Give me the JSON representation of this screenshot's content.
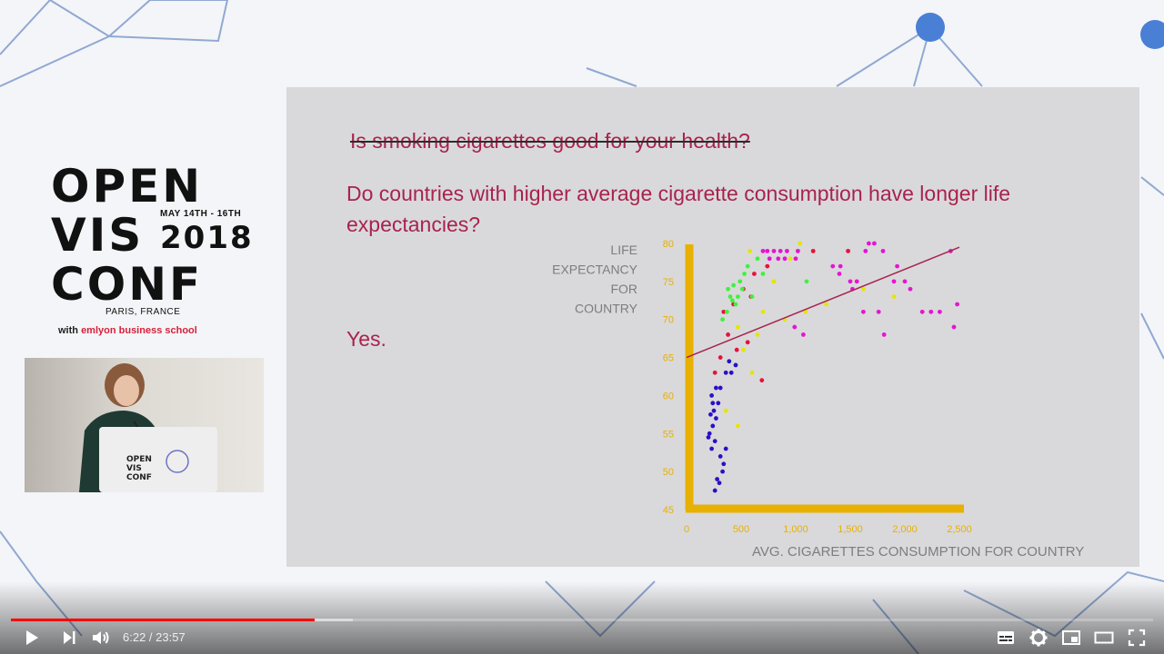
{
  "conference": {
    "name_line1": "OPEN",
    "name_line2": "VIS",
    "name_line3": "CONF",
    "dates": "MAY 14TH - 16TH",
    "year": "2018",
    "city": "PARIS, FRANCE",
    "partner_prefix": "with",
    "partner_name": "emlyon business school"
  },
  "slide": {
    "question_struck": "Is smoking cigarettes good for your health?",
    "question": "Do countries with higher average cigarette consumption have longer life expectancies?",
    "answer": "Yes."
  },
  "chart_data": {
    "type": "scatter",
    "ylabel": [
      "LIFE",
      "EXPECTANCY",
      "FOR",
      "COUNTRY"
    ],
    "xlabel": "AVG. CIGARETTES CONSUMPTION FOR COUNTRY",
    "x_ticks": [
      "0",
      "500",
      "1,000",
      "1,500",
      "2,000",
      "2,500"
    ],
    "y_ticks": [
      "45",
      "50",
      "55",
      "60",
      "65",
      "70",
      "75",
      "80"
    ],
    "xlim": [
      0,
      2500
    ],
    "ylim": [
      45,
      80
    ],
    "trend_line": {
      "x": [
        0,
        2500
      ],
      "y": [
        65,
        79.5
      ]
    },
    "colors": {
      "purple": "#2b0fc8",
      "red": "#e8113a",
      "yellow": "#e5e600",
      "green": "#3ff23f",
      "magenta": "#e614d2",
      "axis": "#e8b000",
      "trend": "#a8234d"
    },
    "points": [
      {
        "x": 210,
        "y": 55,
        "c": "purple"
      },
      {
        "x": 230,
        "y": 53,
        "c": "purple"
      },
      {
        "x": 260,
        "y": 54,
        "c": "purple"
      },
      {
        "x": 200,
        "y": 54.5,
        "c": "purple"
      },
      {
        "x": 240,
        "y": 56,
        "c": "purple"
      },
      {
        "x": 270,
        "y": 57,
        "c": "purple"
      },
      {
        "x": 250,
        "y": 58,
        "c": "purple"
      },
      {
        "x": 290,
        "y": 59,
        "c": "purple"
      },
      {
        "x": 230,
        "y": 60,
        "c": "purple"
      },
      {
        "x": 270,
        "y": 61,
        "c": "purple"
      },
      {
        "x": 310,
        "y": 52,
        "c": "purple"
      },
      {
        "x": 340,
        "y": 51,
        "c": "purple"
      },
      {
        "x": 280,
        "y": 49,
        "c": "purple"
      },
      {
        "x": 300,
        "y": 48.5,
        "c": "purple"
      },
      {
        "x": 260,
        "y": 47.5,
        "c": "purple"
      },
      {
        "x": 330,
        "y": 50,
        "c": "purple"
      },
      {
        "x": 360,
        "y": 53,
        "c": "purple"
      },
      {
        "x": 310,
        "y": 61,
        "c": "purple"
      },
      {
        "x": 360,
        "y": 63,
        "c": "purple"
      },
      {
        "x": 410,
        "y": 63,
        "c": "purple"
      },
      {
        "x": 450,
        "y": 64,
        "c": "purple"
      },
      {
        "x": 390,
        "y": 64.5,
        "c": "purple"
      },
      {
        "x": 220,
        "y": 57.5,
        "c": "purple"
      },
      {
        "x": 240,
        "y": 59,
        "c": "purple"
      },
      {
        "x": 260,
        "y": 63,
        "c": "red"
      },
      {
        "x": 310,
        "y": 65,
        "c": "red"
      },
      {
        "x": 340,
        "y": 71,
        "c": "red"
      },
      {
        "x": 430,
        "y": 72,
        "c": "red"
      },
      {
        "x": 520,
        "y": 74,
        "c": "red"
      },
      {
        "x": 590,
        "y": 73,
        "c": "red"
      },
      {
        "x": 740,
        "y": 77,
        "c": "red"
      },
      {
        "x": 1160,
        "y": 79,
        "c": "red"
      },
      {
        "x": 1480,
        "y": 79,
        "c": "red"
      },
      {
        "x": 380,
        "y": 68,
        "c": "red"
      },
      {
        "x": 620,
        "y": 76,
        "c": "red"
      },
      {
        "x": 690,
        "y": 62,
        "c": "red"
      },
      {
        "x": 460,
        "y": 66,
        "c": "red"
      },
      {
        "x": 560,
        "y": 67,
        "c": "red"
      },
      {
        "x": 470,
        "y": 69,
        "c": "yellow"
      },
      {
        "x": 520,
        "y": 66,
        "c": "yellow"
      },
      {
        "x": 600,
        "y": 63,
        "c": "yellow"
      },
      {
        "x": 700,
        "y": 71,
        "c": "yellow"
      },
      {
        "x": 800,
        "y": 75,
        "c": "yellow"
      },
      {
        "x": 950,
        "y": 78,
        "c": "yellow"
      },
      {
        "x": 1090,
        "y": 71,
        "c": "yellow"
      },
      {
        "x": 1280,
        "y": 72,
        "c": "yellow"
      },
      {
        "x": 1620,
        "y": 74,
        "c": "yellow"
      },
      {
        "x": 1900,
        "y": 73,
        "c": "yellow"
      },
      {
        "x": 360,
        "y": 58,
        "c": "yellow"
      },
      {
        "x": 470,
        "y": 56,
        "c": "yellow"
      },
      {
        "x": 650,
        "y": 68,
        "c": "yellow"
      },
      {
        "x": 580,
        "y": 79,
        "c": "yellow"
      },
      {
        "x": 1040,
        "y": 80,
        "c": "yellow"
      },
      {
        "x": 900,
        "y": 70,
        "c": "yellow"
      },
      {
        "x": 380,
        "y": 74,
        "c": "green"
      },
      {
        "x": 400,
        "y": 73,
        "c": "green"
      },
      {
        "x": 420,
        "y": 72.5,
        "c": "green"
      },
      {
        "x": 430,
        "y": 74.5,
        "c": "green"
      },
      {
        "x": 450,
        "y": 72,
        "c": "green"
      },
      {
        "x": 470,
        "y": 73,
        "c": "green"
      },
      {
        "x": 490,
        "y": 75,
        "c": "green"
      },
      {
        "x": 510,
        "y": 74,
        "c": "green"
      },
      {
        "x": 530,
        "y": 76,
        "c": "green"
      },
      {
        "x": 560,
        "y": 77,
        "c": "green"
      },
      {
        "x": 600,
        "y": 73,
        "c": "green"
      },
      {
        "x": 370,
        "y": 71,
        "c": "green"
      },
      {
        "x": 330,
        "y": 70,
        "c": "green"
      },
      {
        "x": 650,
        "y": 78,
        "c": "green"
      },
      {
        "x": 700,
        "y": 76,
        "c": "green"
      },
      {
        "x": 1100,
        "y": 75,
        "c": "green"
      },
      {
        "x": 700,
        "y": 79,
        "c": "magenta"
      },
      {
        "x": 740,
        "y": 79,
        "c": "magenta"
      },
      {
        "x": 800,
        "y": 79,
        "c": "magenta"
      },
      {
        "x": 860,
        "y": 79,
        "c": "magenta"
      },
      {
        "x": 920,
        "y": 79,
        "c": "magenta"
      },
      {
        "x": 760,
        "y": 78,
        "c": "magenta"
      },
      {
        "x": 840,
        "y": 78,
        "c": "magenta"
      },
      {
        "x": 900,
        "y": 78,
        "c": "magenta"
      },
      {
        "x": 1000,
        "y": 78,
        "c": "magenta"
      },
      {
        "x": 1340,
        "y": 77,
        "c": "magenta"
      },
      {
        "x": 1400,
        "y": 76,
        "c": "magenta"
      },
      {
        "x": 1410,
        "y": 77,
        "c": "magenta"
      },
      {
        "x": 1500,
        "y": 75,
        "c": "magenta"
      },
      {
        "x": 1520,
        "y": 74,
        "c": "magenta"
      },
      {
        "x": 1560,
        "y": 75,
        "c": "magenta"
      },
      {
        "x": 1640,
        "y": 79,
        "c": "magenta"
      },
      {
        "x": 1670,
        "y": 80,
        "c": "magenta"
      },
      {
        "x": 1720,
        "y": 80,
        "c": "magenta"
      },
      {
        "x": 1800,
        "y": 79,
        "c": "magenta"
      },
      {
        "x": 1930,
        "y": 77,
        "c": "magenta"
      },
      {
        "x": 2000,
        "y": 75,
        "c": "magenta"
      },
      {
        "x": 2050,
        "y": 74,
        "c": "magenta"
      },
      {
        "x": 1900,
        "y": 75,
        "c": "magenta"
      },
      {
        "x": 1620,
        "y": 71,
        "c": "magenta"
      },
      {
        "x": 1760,
        "y": 71,
        "c": "magenta"
      },
      {
        "x": 2160,
        "y": 71,
        "c": "magenta"
      },
      {
        "x": 2240,
        "y": 71,
        "c": "magenta"
      },
      {
        "x": 2320,
        "y": 71,
        "c": "magenta"
      },
      {
        "x": 2480,
        "y": 72,
        "c": "magenta"
      },
      {
        "x": 2420,
        "y": 79,
        "c": "magenta"
      },
      {
        "x": 1810,
        "y": 68,
        "c": "magenta"
      },
      {
        "x": 2450,
        "y": 69,
        "c": "magenta"
      },
      {
        "x": 990,
        "y": 69,
        "c": "magenta"
      },
      {
        "x": 1070,
        "y": 68,
        "c": "magenta"
      },
      {
        "x": 1020,
        "y": 79,
        "c": "magenta"
      }
    ]
  },
  "player": {
    "current_time": "6:22",
    "separator": " / ",
    "duration": "23:57",
    "played_fraction": 0.266,
    "buffered_fraction": 0.299
  }
}
